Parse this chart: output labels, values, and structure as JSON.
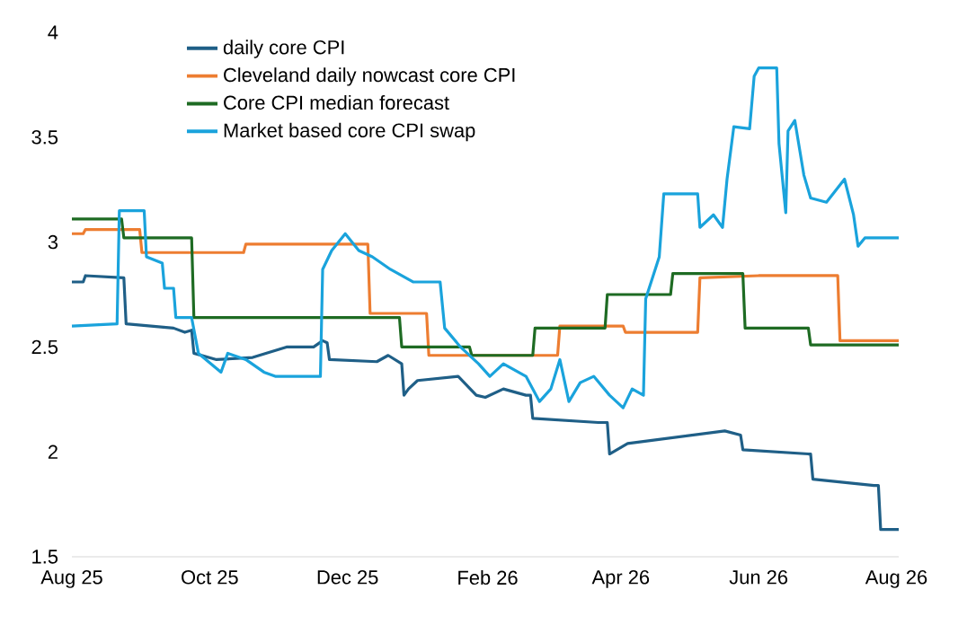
{
  "chart_data": {
    "type": "line",
    "marker": "none",
    "line_style": "solid",
    "legend": "top left",
    "xlim": [
      "2025-08-01",
      "2026-08-02"
    ],
    "ylim": [
      1.5,
      4
    ],
    "yticks": [
      1.5,
      2,
      2.5,
      3,
      3.5,
      4
    ],
    "xticks": [
      {
        "value": "2025-08-01",
        "label": "Aug 25"
      },
      {
        "value": "2025-10-01",
        "label": "Oct 25"
      },
      {
        "value": "2025-12-01",
        "label": "Dec 25"
      },
      {
        "value": "2026-02-01",
        "label": "Feb 26"
      },
      {
        "value": "2026-04-01",
        "label": "Apr 26"
      },
      {
        "value": "2026-06-01",
        "label": "Jun 26"
      },
      {
        "value": "2026-08-01",
        "label": "Aug 26"
      }
    ],
    "series": [
      {
        "name": "daily core CPI",
        "color": "#1f5f87",
        "x": [
          "2025-08-01",
          "2025-08-06",
          "2025-08-07",
          "2025-08-24",
          "2025-08-25",
          "2025-09-15",
          "2025-09-20",
          "2025-09-23",
          "2025-09-24",
          "2025-10-04",
          "2025-10-20",
          "2025-11-04",
          "2025-11-16",
          "2025-11-20",
          "2025-11-22",
          "2025-11-23",
          "2025-12-14",
          "2025-12-19",
          "2025-12-25",
          "2025-12-26",
          "2025-12-28",
          "2026-01-01",
          "2026-01-19",
          "2026-01-27",
          "2026-01-31",
          "2026-02-08",
          "2026-02-18",
          "2026-02-20",
          "2026-02-21",
          "2026-03-22",
          "2026-03-26",
          "2026-03-27",
          "2026-04-04",
          "2026-05-17",
          "2026-05-24",
          "2026-05-25",
          "2026-06-23",
          "2026-06-24",
          "2026-06-25",
          "2026-07-22",
          "2026-07-24",
          "2026-07-25",
          "2026-08-02"
        ],
        "values": [
          2.81,
          2.81,
          2.84,
          2.83,
          2.61,
          2.59,
          2.57,
          2.58,
          2.47,
          2.44,
          2.45,
          2.5,
          2.5,
          2.53,
          2.52,
          2.44,
          2.43,
          2.46,
          2.42,
          2.27,
          2.3,
          2.34,
          2.36,
          2.27,
          2.26,
          2.3,
          2.27,
          2.27,
          2.16,
          2.14,
          2.14,
          1.99,
          2.04,
          2.1,
          2.08,
          2.01,
          1.99,
          1.99,
          1.87,
          1.84,
          1.84,
          1.63,
          1.63
        ]
      },
      {
        "name": "Cleveland daily nowcast core CPI",
        "color": "#ed7d31",
        "x": [
          "2025-08-01",
          "2025-08-06",
          "2025-08-07",
          "2025-08-31",
          "2025-09-01",
          "2025-10-16",
          "2025-10-17",
          "2025-12-10",
          "2025-12-11",
          "2026-01-05",
          "2026-01-06",
          "2026-03-04",
          "2026-03-05",
          "2026-04-02",
          "2026-04-03",
          "2026-05-05",
          "2026-05-06",
          "2026-06-01",
          "2026-07-06",
          "2026-07-07",
          "2026-08-02"
        ],
        "values": [
          3.04,
          3.04,
          3.06,
          3.06,
          2.95,
          2.95,
          2.99,
          2.99,
          2.66,
          2.66,
          2.46,
          2.46,
          2.6,
          2.6,
          2.57,
          2.57,
          2.83,
          2.84,
          2.84,
          2.53,
          2.53
        ]
      },
      {
        "name": "Core CPI median forecast",
        "color": "#1e6b23",
        "x": [
          "2025-08-01",
          "2025-08-23",
          "2025-08-24",
          "2025-09-23",
          "2025-09-24",
          "2025-12-24",
          "2025-12-25",
          "2026-01-24",
          "2026-01-25",
          "2026-02-21",
          "2026-02-22",
          "2026-03-25",
          "2026-03-26",
          "2026-04-23",
          "2026-04-24",
          "2026-05-25",
          "2026-05-26",
          "2026-06-23",
          "2026-06-24",
          "2026-08-02"
        ],
        "values": [
          3.11,
          3.11,
          3.02,
          3.02,
          2.64,
          2.64,
          2.5,
          2.5,
          2.46,
          2.46,
          2.59,
          2.59,
          2.75,
          2.75,
          2.85,
          2.85,
          2.59,
          2.59,
          2.51,
          2.51
        ]
      },
      {
        "name": "Market based core CPI swap",
        "color": "#1aa3dc",
        "x": [
          "2025-08-01",
          "2025-08-21",
          "2025-08-22",
          "2025-09-02",
          "2025-09-03",
          "2025-09-10",
          "2025-09-11",
          "2025-09-15",
          "2025-09-16",
          "2025-09-23",
          "2025-09-26",
          "2025-10-06",
          "2025-10-09",
          "2025-10-17",
          "2025-10-25",
          "2025-10-30",
          "2025-11-19",
          "2025-11-20",
          "2025-11-24",
          "2025-11-30",
          "2025-12-06",
          "2025-12-12",
          "2025-12-20",
          "2025-12-30",
          "2026-01-11",
          "2026-01-13",
          "2026-01-20",
          "2026-01-28",
          "2026-02-02",
          "2026-02-08",
          "2026-02-18",
          "2026-02-24",
          "2026-03-01",
          "2026-03-05",
          "2026-03-09",
          "2026-03-14",
          "2026-03-20",
          "2026-03-27",
          "2026-04-02",
          "2026-04-06",
          "2026-04-11",
          "2026-04-12",
          "2026-04-18",
          "2026-04-20",
          "2026-05-05",
          "2026-05-06",
          "2026-05-12",
          "2026-05-16",
          "2026-05-18",
          "2026-05-21",
          "2026-05-28",
          "2026-05-30",
          "2026-06-01",
          "2026-06-09",
          "2026-06-10",
          "2026-06-13",
          "2026-06-14",
          "2026-06-17",
          "2026-06-21",
          "2026-06-24",
          "2026-07-01",
          "2026-07-09",
          "2026-07-13",
          "2026-07-15",
          "2026-07-18",
          "2026-08-02"
        ],
        "values": [
          2.6,
          2.61,
          3.15,
          3.15,
          2.93,
          2.9,
          2.78,
          2.78,
          2.64,
          2.64,
          2.47,
          2.38,
          2.47,
          2.44,
          2.38,
          2.36,
          2.36,
          2.87,
          2.96,
          3.04,
          2.96,
          2.93,
          2.87,
          2.81,
          2.81,
          2.59,
          2.5,
          2.42,
          2.36,
          2.42,
          2.36,
          2.24,
          2.3,
          2.44,
          2.24,
          2.33,
          2.36,
          2.27,
          2.21,
          2.3,
          2.27,
          2.73,
          2.93,
          3.23,
          3.23,
          3.07,
          3.13,
          3.07,
          3.3,
          3.55,
          3.54,
          3.79,
          3.83,
          3.83,
          3.47,
          3.14,
          3.53,
          3.58,
          3.32,
          3.21,
          3.19,
          3.3,
          3.13,
          2.98,
          3.02,
          3.02
        ]
      }
    ]
  }
}
